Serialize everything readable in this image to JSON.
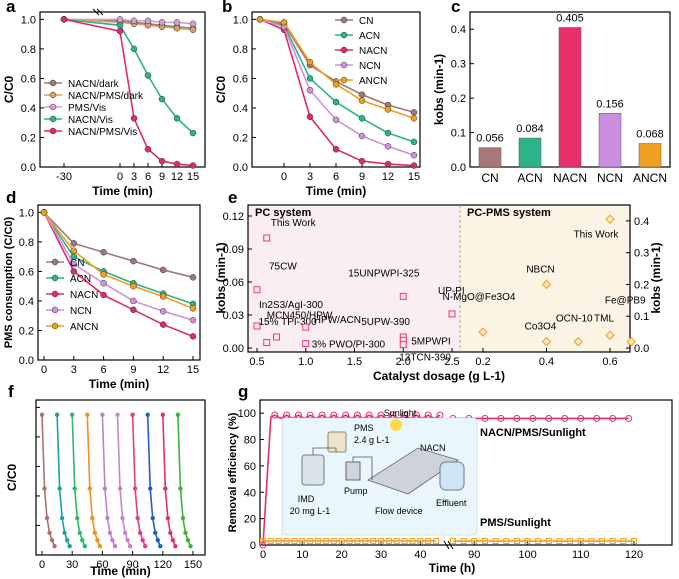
{
  "chart_data": [
    {
      "panel": "a",
      "type": "line",
      "xlabel": "Time (min)",
      "ylabel": "C/C0",
      "xticks": [
        "-30",
        "0",
        "3",
        "6",
        "9",
        "12",
        "15"
      ],
      "yticks": [
        "0.0",
        "0.2",
        "0.4",
        "0.6",
        "0.8",
        "1.0"
      ],
      "ylim": [
        0,
        1.05
      ],
      "x": [
        -30,
        0,
        3,
        6,
        9,
        12,
        15
      ],
      "series": [
        {
          "name": "NACN/dark",
          "color": "#a07878",
          "values": [
            1.0,
            0.99,
            0.98,
            0.97,
            0.96,
            0.95,
            0.94
          ]
        },
        {
          "name": "NACN/PMS/dark",
          "color": "#d9a060",
          "values": [
            1.0,
            0.98,
            0.97,
            0.96,
            0.95,
            0.94,
            0.93
          ]
        },
        {
          "name": "PMS/Vis",
          "color": "#d0a0d8",
          "values": [
            1.0,
            1.0,
            0.99,
            0.99,
            0.98,
            0.98,
            0.97
          ]
        },
        {
          "name": "NACN/Vis",
          "color": "#2cb38a",
          "values": [
            1.0,
            0.96,
            0.8,
            0.62,
            0.46,
            0.33,
            0.23
          ]
        },
        {
          "name": "NACN/PMS/Vis",
          "color": "#e02a6c",
          "values": [
            1.0,
            0.92,
            0.33,
            0.12,
            0.04,
            0.02,
            0.01
          ]
        }
      ]
    },
    {
      "panel": "b",
      "type": "line",
      "xlabel": "Time (min)",
      "ylabel": "C/C0",
      "xticks": [
        "0",
        "3",
        "6",
        "9",
        "12",
        "15"
      ],
      "yticks": [
        "0.0",
        "0.2",
        "0.4",
        "0.6",
        "0.8",
        "1.0"
      ],
      "ylim": [
        0,
        1.05
      ],
      "x": [
        -6,
        0,
        3,
        6,
        9,
        12,
        15
      ],
      "series": [
        {
          "name": "CN",
          "color": "#a07878",
          "values": [
            1.0,
            0.97,
            0.69,
            0.58,
            0.49,
            0.42,
            0.37
          ]
        },
        {
          "name": "ACN",
          "color": "#2cb38a",
          "values": [
            1.0,
            0.96,
            0.6,
            0.44,
            0.33,
            0.23,
            0.17
          ]
        },
        {
          "name": "NACN",
          "color": "#e02a6c",
          "values": [
            1.0,
            0.93,
            0.34,
            0.12,
            0.04,
            0.02,
            0.01
          ]
        },
        {
          "name": "NCN",
          "color": "#d090e0",
          "values": [
            1.0,
            0.95,
            0.52,
            0.32,
            0.21,
            0.14,
            0.08
          ]
        },
        {
          "name": "ANCN",
          "color": "#f0a020",
          "values": [
            1.0,
            0.98,
            0.71,
            0.56,
            0.45,
            0.39,
            0.33
          ]
        }
      ]
    },
    {
      "panel": "c",
      "type": "bar",
      "ylabel": "kobs (min-1)",
      "yticks": [
        "0.0",
        "0.1",
        "0.2",
        "0.3",
        "0.4"
      ],
      "ylim": [
        0,
        0.45
      ],
      "categories": [
        "CN",
        "ACN",
        "NACN",
        "NCN",
        "ANCN"
      ],
      "values": [
        0.056,
        0.084,
        0.405,
        0.156,
        0.068
      ],
      "data_labels": [
        "0.056",
        "0.084",
        "0.405",
        "0.156",
        "0.068"
      ],
      "colors": [
        "#a87878",
        "#2cb38a",
        "#e8306a",
        "#c98ee0",
        "#f0a020"
      ]
    },
    {
      "panel": "d",
      "type": "line",
      "xlabel": "Time (min)",
      "ylabel": "PMS consumption (C/C0)",
      "xticks": [
        "0",
        "3",
        "6",
        "9",
        "12",
        "15"
      ],
      "yticks": [
        "0.0",
        "0.2",
        "0.4",
        "0.6",
        "0.8",
        "1.0"
      ],
      "ylim": [
        0,
        1.05
      ],
      "x": [
        0,
        3,
        6,
        9,
        12,
        15
      ],
      "series": [
        {
          "name": "CN",
          "color": "#a07878",
          "values": [
            1.0,
            0.79,
            0.73,
            0.67,
            0.61,
            0.56
          ]
        },
        {
          "name": "ACN",
          "color": "#2cb38a",
          "values": [
            1.0,
            0.7,
            0.6,
            0.52,
            0.45,
            0.38
          ]
        },
        {
          "name": "NACN",
          "color": "#e02a6c",
          "values": [
            1.0,
            0.6,
            0.44,
            0.34,
            0.24,
            0.16
          ]
        },
        {
          "name": "NCN",
          "color": "#d090e0",
          "values": [
            1.0,
            0.65,
            0.52,
            0.4,
            0.33,
            0.27
          ]
        },
        {
          "name": "ANCN",
          "color": "#f0a020",
          "values": [
            1.0,
            0.74,
            0.58,
            0.5,
            0.43,
            0.35
          ]
        }
      ]
    },
    {
      "panel": "e",
      "type": "scatter",
      "xlabel": "Catalyst dosage (g L-1)",
      "ylabel_left": "kobs (min-1)",
      "ylabel_right": "kobs (min-1)",
      "region_left": "PC system",
      "region_right": "PC-PMS system",
      "xticks_left": [
        "0.5",
        "1.0",
        "1.5",
        "2.0",
        "2.5"
      ],
      "xticks_right": [
        "0.2",
        "0.4",
        "0.6"
      ],
      "yticks_left": [
        "0.00",
        "0.03",
        "0.06",
        "0.09",
        "0.12"
      ],
      "yticks_right": [
        "0.0",
        "0.1",
        "0.2",
        "0.3",
        "0.4"
      ],
      "pc_points": [
        {
          "label": "This Work",
          "x": 0.6,
          "y": 0.1
        },
        {
          "label": "75CW",
          "x": 0.5,
          "y": 0.053
        },
        {
          "label": "In2S3/AgI-300",
          "x": 0.5,
          "y": 0.02
        },
        {
          "label": "MCN450/HPW",
          "x": 0.6,
          "y": 0.005
        },
        {
          "label": "15% TPI-300",
          "x": 0.7,
          "y": 0.01
        },
        {
          "label": "HPW/ACN",
          "x": 1.0,
          "y": 0.019
        },
        {
          "label": "3% PWO/PI-300",
          "x": 1.0,
          "y": 0.004
        },
        {
          "label": "15UNPWPI-325",
          "x": 2.0,
          "y": 0.047
        },
        {
          "label": "UP-PI",
          "x": 2.5,
          "y": 0.031
        },
        {
          "label": "5UPW-390",
          "x": 2.0,
          "y": 0.01
        },
        {
          "label": "5MPWPI",
          "x": 2.0,
          "y": 0.007
        },
        {
          "label": "13TCN-390",
          "x": 2.0,
          "y": 0.003
        }
      ],
      "pms_points": [
        {
          "label": "This Work",
          "x": 0.6,
          "y": 0.405
        },
        {
          "label": "NBCN",
          "x": 0.4,
          "y": 0.2
        },
        {
          "label": "TML",
          "x": 0.6,
          "y": 0.04
        },
        {
          "label": "Fe@PB9",
          "x": 0.667,
          "y": 0.02
        },
        {
          "label": "N-MgO@Fe3O4",
          "x": 0.2,
          "y": 0.05
        },
        {
          "label": "OCN-10",
          "x": 0.5,
          "y": 0.02
        },
        {
          "label": "Co3O4",
          "x": 0.4,
          "y": 0.02
        }
      ]
    },
    {
      "panel": "f",
      "type": "line",
      "xlabel": "Time (min)",
      "ylabel": "C/C0",
      "xticks": [
        "0",
        "30",
        "60",
        "90",
        "120",
        "150"
      ],
      "cycles": 10,
      "cycle_values": [
        0.95,
        0.45,
        0.25,
        0.15,
        0.1,
        0.06
      ],
      "colors": [
        "#b07070",
        "#20a0a0",
        "#30b870",
        "#f09020",
        "#c080d0",
        "#d080d0",
        "#e04080",
        "#2060c0",
        "#e03070",
        "#40b040"
      ]
    },
    {
      "panel": "g",
      "type": "line",
      "xlabel": "Time (h)",
      "ylabel": "Removal efficiency (%)",
      "xticks": [
        "0",
        "10",
        "20",
        "30",
        "40",
        "90",
        "100",
        "110",
        "120"
      ],
      "yticks": [
        "0",
        "20",
        "40",
        "60",
        "80",
        "100"
      ],
      "series": [
        {
          "name": "NACN/PMS/Sunlight",
          "color": "#e0306c",
          "value_plateau": 97
        },
        {
          "name": "PMS/Sunlight",
          "color": "#f0a020",
          "value_plateau": 3
        }
      ],
      "inset_labels": {
        "sunlight": "Sunlight",
        "pms": "PMS",
        "pms_conc": "2.4 g L-1",
        "imd": "IMD",
        "imd_conc": "20 mg L-1",
        "pump": "Pump",
        "nacn": "NACN",
        "flow": "Flow device",
        "effluent": "Effluent"
      }
    }
  ],
  "panel_letters": [
    "a",
    "b",
    "c",
    "d",
    "e",
    "f",
    "g"
  ]
}
